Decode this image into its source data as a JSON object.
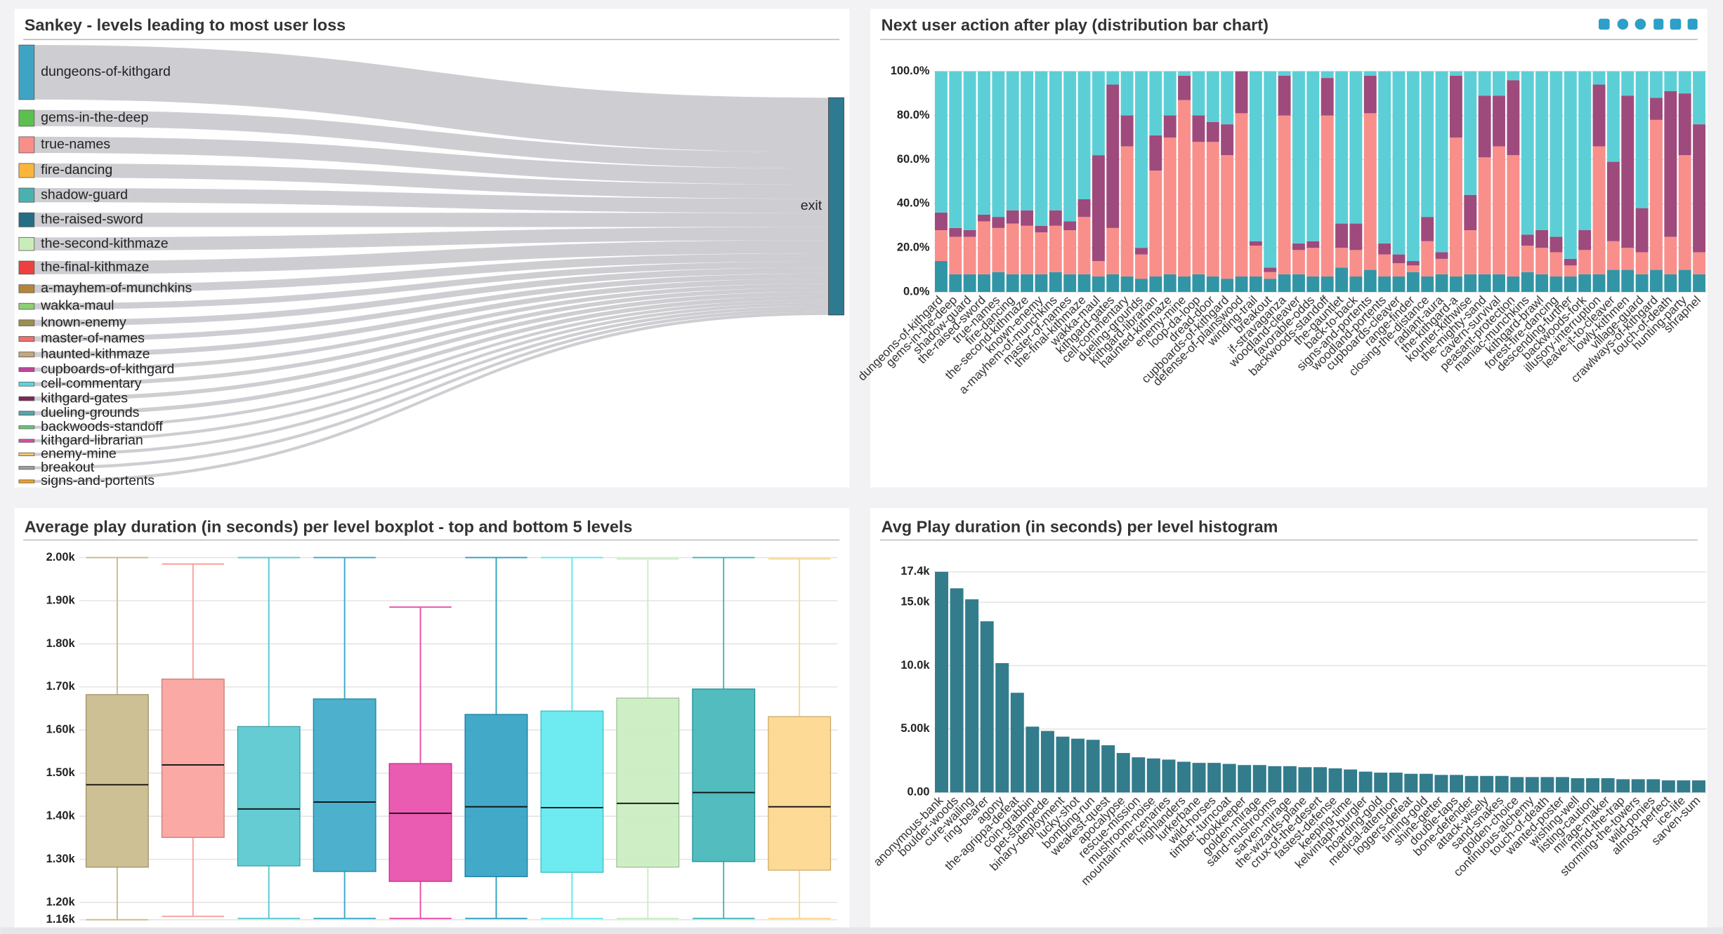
{
  "chart_data": [
    {
      "type": "sankey",
      "title": "Sankey - levels leading to most user loss",
      "target": "exit",
      "target_color": "#2e7b91",
      "link_color": "#c6c6ca",
      "sources": [
        {
          "name": "dungeons-of-kithgard",
          "color": "#3fa4c4",
          "value": 54
        },
        {
          "name": "gems-in-the-deep",
          "color": "#5cc04e",
          "value": 16
        },
        {
          "name": "true-names",
          "color": "#f98f8a",
          "value": 16
        },
        {
          "name": "fire-dancing",
          "color": "#fbb53a",
          "value": 14
        },
        {
          "name": "shadow-guard",
          "color": "#4bb1b0",
          "value": 14
        },
        {
          "name": "the-raised-sword",
          "color": "#236d85",
          "value": 14
        },
        {
          "name": "the-second-kithmaze",
          "color": "#c8edb9",
          "value": 13
        },
        {
          "name": "the-final-kithmaze",
          "color": "#ef4040",
          "value": 13
        },
        {
          "name": "a-mayhem-of-munchkins",
          "color": "#b5853a",
          "value": 8
        },
        {
          "name": "wakka-maul",
          "color": "#8dcf74",
          "value": 6
        },
        {
          "name": "known-enemy",
          "color": "#9b8f4e",
          "value": 6
        },
        {
          "name": "master-of-names",
          "color": "#f06f6f",
          "value": 5
        },
        {
          "name": "haunted-kithmaze",
          "color": "#c2a87a",
          "value": 5
        },
        {
          "name": "cupboards-of-kithgard",
          "color": "#c0439a",
          "value": 4
        },
        {
          "name": "cell-commentary",
          "color": "#56d8e0",
          "value": 4
        },
        {
          "name": "kithgard-gates",
          "color": "#7a2a57",
          "value": 4
        },
        {
          "name": "dueling-grounds",
          "color": "#55a8a8",
          "value": 4
        },
        {
          "name": "backwoods-standoff",
          "color": "#6fc27a",
          "value": 3
        },
        {
          "name": "kithgard-librarian",
          "color": "#e04aa0",
          "value": 3
        },
        {
          "name": "enemy-mine",
          "color": "#f7c56a",
          "value": 3
        },
        {
          "name": "breakout",
          "color": "#a0a0a0",
          "value": 3
        },
        {
          "name": "signs-and-portents",
          "color": "#f0a020",
          "value": 3
        }
      ]
    },
    {
      "type": "bar",
      "title": "Next user action after play (distribution bar chart)",
      "stacked": true,
      "grid": true,
      "ylim": [
        0,
        100
      ],
      "yticks": [
        {
          "value": 0,
          "label": "0.0%"
        },
        {
          "value": 20,
          "label": "20.0%"
        },
        {
          "value": 40,
          "label": "40.0%"
        },
        {
          "value": 60,
          "label": "60.0%"
        },
        {
          "value": 80,
          "label": "80.0%"
        },
        {
          "value": 100,
          "label": "100.0%"
        }
      ],
      "categories": [
        "dungeons-of-kithgard",
        "gems-in-the-deep",
        "shadow-guard",
        "the-raised-sword",
        "true-names",
        "fire-dancing",
        "the-second-kithmaze",
        "known-enemy",
        "a-mayhem-of-munchkins",
        "master-of-names",
        "the-final-kithmaze",
        "wakka-maul",
        "kithgard-gates",
        "cell-commentary",
        "dueling-grounds",
        "kithgard-librarian",
        "haunted-kithmaze",
        "enemy-mine",
        "loop-da-loop",
        "dread-door",
        "cupboards-of-kithgard",
        "defense-of-plainswood",
        "winding-trail",
        "breakout",
        "if-stravaganza",
        "woodland-cleaver",
        "favorable-odds",
        "backwoods-standoff",
        "the-gauntlet",
        "back-to-back",
        "signs-and-portents",
        "woodland-portents",
        "cupboards-cleaver",
        "range-finder",
        "closing-the-distance",
        "radiant-aura",
        "the-kithgard-a",
        "kounter-kithwise",
        "the-mighty-sand",
        "cavern-survival",
        "peasant-protection",
        "maniac-munchkins",
        "kithgard-brawl",
        "forest-fire-dancing",
        "descending-further",
        "backwoods-fork",
        "illusory-interruption",
        "leave-it-to-cleaver",
        "lowly-kithmen",
        "village-guard",
        "crawlways-of-kithgard",
        "touch-of-death",
        "hunting-party",
        "shrapnel"
      ],
      "series": [
        {
          "color": "#3195a6",
          "values": [
            14,
            8,
            8,
            8,
            9,
            8,
            8,
            8,
            9,
            8,
            8,
            7,
            8,
            7,
            6,
            7,
            8,
            7,
            8,
            7,
            6,
            7,
            7,
            6,
            8,
            8,
            7,
            7,
            11,
            7,
            10,
            7,
            7,
            9,
            7,
            8,
            7,
            8,
            8,
            8,
            7,
            9,
            8,
            7,
            7,
            8,
            8,
            10,
            10,
            8,
            10,
            8,
            10,
            8
          ]
        },
        {
          "color": "#f98f8a",
          "values": [
            14,
            17,
            17,
            24,
            20,
            23,
            22,
            19,
            21,
            20,
            26,
            7,
            21,
            59,
            11,
            48,
            62,
            80,
            60,
            61,
            56,
            74,
            14,
            3,
            72,
            11,
            13,
            73,
            9,
            12,
            71,
            10,
            6,
            3,
            16,
            7,
            63,
            20,
            53,
            58,
            55,
            12,
            12,
            11,
            5,
            11,
            58,
            13,
            10,
            10,
            68,
            17,
            52,
            10
          ]
        },
        {
          "color": "#9e4a7c",
          "values": [
            8,
            4,
            3,
            3,
            5,
            6,
            7,
            3,
            7,
            4,
            8,
            48,
            65,
            14,
            3,
            16,
            10,
            11,
            12,
            9,
            14,
            19,
            2,
            2,
            18,
            3,
            3,
            17,
            11,
            12,
            17,
            5,
            4,
            2,
            11,
            3,
            28,
            16,
            28,
            23,
            34,
            5,
            8,
            7,
            3,
            9,
            28,
            36,
            69,
            20,
            10,
            66,
            28,
            58
          ]
        },
        {
          "color": "#5ccfd6",
          "values": [
            64,
            71,
            72,
            65,
            66,
            63,
            63,
            70,
            63,
            68,
            58,
            38,
            6,
            20,
            80,
            29,
            20,
            2,
            20,
            23,
            24,
            0,
            77,
            89,
            2,
            78,
            77,
            3,
            69,
            69,
            2,
            78,
            83,
            86,
            66,
            82,
            2,
            56,
            11,
            11,
            4,
            74,
            72,
            75,
            85,
            72,
            6,
            41,
            11,
            62,
            12,
            9,
            10,
            24
          ]
        }
      ]
    },
    {
      "type": "box",
      "title": "Average play duration (in seconds) per level boxplot - top and bottom 5 levels",
      "grid": true,
      "ylim": [
        1160,
        2000
      ],
      "yticks": [
        {
          "value": 1160,
          "label": "1.16k"
        },
        {
          "value": 1200,
          "label": "1.20k"
        },
        {
          "value": 1300,
          "label": "1.30k"
        },
        {
          "value": 1400,
          "label": "1.40k"
        },
        {
          "value": 1500,
          "label": "1.50k"
        },
        {
          "value": 1600,
          "label": "1.60k"
        },
        {
          "value": 1700,
          "label": "1.70k"
        },
        {
          "value": 1800,
          "label": "1.80k"
        },
        {
          "value": 1900,
          "label": "1.90k"
        },
        {
          "value": 2000,
          "label": "2.00k"
        }
      ],
      "boxes": [
        {
          "color": "#c9b98a",
          "min": 1160,
          "q1": 1282,
          "median": 1473,
          "q3": 1682,
          "max": 2000
        },
        {
          "color": "#f9a09b",
          "min": 1168,
          "q1": 1351,
          "median": 1519,
          "q3": 1718,
          "max": 1985
        },
        {
          "color": "#55c7cf",
          "min": 1163,
          "q1": 1285,
          "median": 1417,
          "q3": 1608,
          "max": 2000
        },
        {
          "color": "#3aa7c8",
          "min": 1163,
          "q1": 1272,
          "median": 1433,
          "q3": 1672,
          "max": 2000
        },
        {
          "color": "#e84aa8",
          "min": 1163,
          "q1": 1249,
          "median": 1407,
          "q3": 1522,
          "max": 1885
        },
        {
          "color": "#2fa0c2",
          "min": 1163,
          "q1": 1260,
          "median": 1422,
          "q3": 1636,
          "max": 2000
        },
        {
          "color": "#5ee9f0",
          "min": 1163,
          "q1": 1270,
          "median": 1420,
          "q3": 1644,
          "max": 2000
        },
        {
          "color": "#c9edc0",
          "min": 1163,
          "q1": 1282,
          "median": 1430,
          "q3": 1674,
          "max": 1997
        },
        {
          "color": "#3fb5b8",
          "min": 1163,
          "q1": 1295,
          "median": 1455,
          "q3": 1695,
          "max": 2000
        },
        {
          "color": "#fdd68a",
          "min": 1163,
          "q1": 1275,
          "median": 1422,
          "q3": 1631,
          "max": 1997
        }
      ]
    },
    {
      "type": "bar",
      "title": "Avg Play duration (in seconds) per level histogram",
      "grid": true,
      "color": "#327c8c",
      "ylim": [
        0,
        17400
      ],
      "yticks": [
        {
          "value": 0,
          "label": "0.00"
        },
        {
          "value": 5000,
          "label": "5.00k"
        },
        {
          "value": 10000,
          "label": "10.0k"
        },
        {
          "value": 15000,
          "label": "15.0k"
        },
        {
          "value": 17400,
          "label": "17.4k"
        }
      ],
      "categories": [
        "anonymous-bank",
        "boulder-woods",
        "cure-wailing",
        "ring-bearer",
        "agony",
        "the-agrippa-defeat",
        "coin-grabbin",
        "pet-stampede",
        "binary-deployment",
        "lucky-shot",
        "bombing-run",
        "weakest-quest",
        "apocalypse",
        "rescue-mission",
        "mushroom-noise",
        "mountain-mercenaries",
        "highlanders",
        "lurkerbane",
        "wild-horses",
        "timber-turncoat",
        "bookkeeper",
        "golden-mirage",
        "sand-mushrooms",
        "sarven-mirage",
        "the-wizards-plane",
        "crux-of-the-desert",
        "fastest-defense",
        "keeping-time",
        "kelvintaph-burgler",
        "hoarding-gold",
        "medical-attention",
        "loggers-defeat",
        "timing-gold",
        "shine-getter",
        "double-taps",
        "bone-defender",
        "attack-wisely",
        "sand-snakes",
        "golden-choice",
        "continuous-alchemy",
        "touch-of-death",
        "wanted-poster",
        "wishing-well",
        "listing-caution",
        "mirage-maker",
        "mind-the-trap",
        "storming-the-towers",
        "wild-ponies",
        "almost-perfect",
        "ice-life",
        "sarven-sum"
      ],
      "values": [
        17400,
        16100,
        15230,
        13500,
        10200,
        7860,
        5190,
        4850,
        4400,
        4240,
        4150,
        3720,
        3110,
        2770,
        2680,
        2590,
        2420,
        2330,
        2330,
        2250,
        2160,
        2160,
        2070,
        2070,
        1990,
        1990,
        1900,
        1810,
        1640,
        1560,
        1560,
        1470,
        1470,
        1380,
        1380,
        1300,
        1300,
        1300,
        1210,
        1210,
        1210,
        1210,
        1120,
        1120,
        1120,
        1040,
        1040,
        1040,
        950,
        950,
        950
      ]
    }
  ]
}
